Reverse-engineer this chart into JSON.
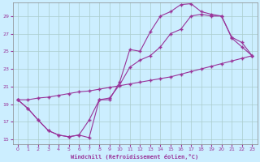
{
  "xlabel": "Windchill (Refroidissement éolien,°C)",
  "bg_color": "#cceeff",
  "grid_color": "#aacccc",
  "line_color": "#993399",
  "xlim": [
    -0.5,
    23.5
  ],
  "ylim": [
    14.5,
    30.5
  ],
  "xticks": [
    0,
    1,
    2,
    3,
    4,
    5,
    6,
    7,
    8,
    9,
    10,
    11,
    12,
    13,
    14,
    15,
    16,
    17,
    18,
    19,
    20,
    21,
    22,
    23
  ],
  "yticks": [
    15,
    17,
    19,
    21,
    23,
    25,
    27,
    29
  ],
  "line1_x": [
    0,
    1,
    2,
    3,
    4,
    5,
    6,
    7,
    8,
    9,
    10,
    11,
    12,
    13,
    14,
    15,
    16,
    17,
    18,
    19,
    20,
    21,
    22,
    23
  ],
  "line1_y": [
    19.5,
    18.5,
    17.2,
    16.0,
    15.5,
    15.3,
    15.5,
    15.2,
    19.5,
    19.5,
    21.5,
    25.2,
    25.0,
    27.2,
    29.0,
    29.5,
    30.3,
    30.4,
    29.5,
    29.2,
    29.0,
    26.6,
    26.0,
    24.5
  ],
  "line2_x": [
    0,
    1,
    2,
    3,
    4,
    5,
    6,
    7,
    8,
    9,
    10,
    11,
    12,
    13,
    14,
    15,
    16,
    17,
    18,
    19,
    20,
    21,
    22,
    23
  ],
  "line2_y": [
    19.5,
    18.5,
    17.2,
    16.0,
    15.5,
    15.3,
    15.5,
    17.2,
    19.5,
    19.7,
    21.2,
    23.2,
    24.0,
    24.5,
    25.5,
    27.0,
    27.5,
    29.0,
    29.2,
    29.0,
    29.0,
    26.5,
    25.5,
    24.5
  ],
  "line3_x": [
    0,
    1,
    2,
    3,
    4,
    5,
    6,
    7,
    8,
    9,
    10,
    11,
    12,
    13,
    14,
    15,
    16,
    17,
    18,
    19,
    20,
    21,
    22,
    23
  ],
  "line3_y": [
    19.5,
    19.5,
    19.7,
    19.8,
    20.0,
    20.2,
    20.4,
    20.5,
    20.7,
    20.9,
    21.1,
    21.3,
    21.5,
    21.7,
    21.9,
    22.1,
    22.4,
    22.7,
    23.0,
    23.3,
    23.6,
    23.9,
    24.2,
    24.5
  ]
}
